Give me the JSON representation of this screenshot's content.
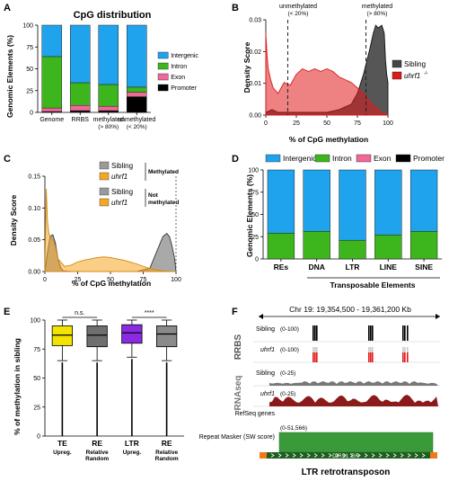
{
  "colors": {
    "intergenic": "#1fa3ec",
    "intron": "#3db51c",
    "exon": "#f0679a",
    "promoter": "#000000",
    "sibling": "#555555",
    "mutant_red": "#e01a1a",
    "mutant_orange": "#f5a623",
    "te_yellow": "#f2e300",
    "ltr_purple": "#8a2be2",
    "rnaseq": "#8b1a1a",
    "repeat_green": "#3a9a3a"
  },
  "panels": {
    "A": "A",
    "B": "B",
    "C": "C",
    "D": "D",
    "E": "E",
    "F": "F"
  },
  "chart_data": [
    {
      "id": "A",
      "type": "bar",
      "stacked": true,
      "title": "CpG distribution",
      "ylabel": "Genomic Elements (%)",
      "ylim": [
        0,
        100
      ],
      "yticks": [
        "0",
        "25",
        "50",
        "75",
        "100"
      ],
      "categories": [
        "Genome",
        "RRBS",
        "methylated",
        "unmethylated"
      ],
      "category_sub": [
        "",
        "",
        "(> 80%)",
        "(< 20%)"
      ],
      "series": [
        {
          "name": "Promoter",
          "values": [
            1,
            2,
            2,
            18
          ]
        },
        {
          "name": "Exon",
          "values": [
            4,
            6,
            5,
            5
          ]
        },
        {
          "name": "Intron",
          "values": [
            59,
            26,
            25,
            6
          ]
        },
        {
          "name": "Intergenic",
          "values": [
            36,
            66,
            68,
            71
          ]
        }
      ],
      "legend": [
        "Intergenic",
        "Intron",
        "Exon",
        "Promoter"
      ]
    },
    {
      "id": "B",
      "type": "area",
      "ylabel": "Density Score",
      "xlabel": "% of CpG methylation",
      "xlim": [
        0,
        100
      ],
      "ylim": [
        0,
        0.035
      ],
      "xticks": [
        "0",
        "25",
        "50",
        "75",
        "100"
      ],
      "yticks": [
        "0.00",
        "0.01",
        "0.02",
        "0.03"
      ],
      "annotations": [
        "unmethylated",
        "(< 20%)",
        "methylated",
        "(> 80%)"
      ],
      "vlines": [
        18,
        82
      ],
      "legend": [
        "Sibling",
        "uhrf1"
      ],
      "mutant_super": "-/-",
      "series": [
        {
          "name": "Sibling",
          "x": [
            0,
            5,
            10,
            20,
            30,
            40,
            50,
            60,
            70,
            75,
            80,
            85,
            88,
            90,
            92,
            95,
            97,
            98,
            99,
            100
          ],
          "y": [
            0.001,
            0.002,
            0.001,
            0.001,
            0.001,
            0.001,
            0.001,
            0.002,
            0.004,
            0.008,
            0.015,
            0.024,
            0.03,
            0.033,
            0.032,
            0.033,
            0.03,
            0.02,
            0.015,
            0.012
          ]
        },
        {
          "name": "uhrf1",
          "x": [
            0,
            1,
            2,
            4,
            6,
            10,
            15,
            20,
            25,
            30,
            35,
            40,
            45,
            50,
            55,
            60,
            65,
            70,
            75,
            80,
            85,
            90,
            95,
            100
          ],
          "y": [
            0.03,
            0.022,
            0.017,
            0.013,
            0.01,
            0.008,
            0.012,
            0.011,
            0.015,
            0.017,
            0.016,
            0.017,
            0.016,
            0.017,
            0.016,
            0.014,
            0.013,
            0.012,
            0.01,
            0.008,
            0.005,
            0.003,
            0.001,
            0.0
          ]
        }
      ]
    },
    {
      "id": "C",
      "type": "area",
      "ylabel": "Density Score",
      "xlabel": "% of CpG methylation",
      "xlim": [
        0,
        100
      ],
      "ylim": [
        0,
        0.15
      ],
      "xticks": [
        "0",
        "25",
        "50",
        "75",
        "100"
      ],
      "yticks": [
        "0.00",
        "0.05",
        "0.10",
        "0.15"
      ],
      "legend": [
        "Sibling",
        "uhrf1",
        "Sibling",
        "uhrf1"
      ],
      "legend_groups": [
        "Methylated",
        "Not",
        "methylated"
      ],
      "mutant_super": "-/-",
      "series": [
        {
          "name": "Sibling",
          "x": [
            0,
            2,
            4,
            6,
            8,
            10,
            12,
            14,
            20,
            40,
            70,
            80,
            85,
            90,
            93,
            95,
            97,
            99,
            100
          ],
          "y": [
            0.0,
            0.03,
            0.055,
            0.058,
            0.045,
            0.02,
            0.006,
            0.001,
            0.0,
            0.0,
            0.0,
            0.005,
            0.03,
            0.055,
            0.06,
            0.055,
            0.04,
            0.02,
            0.0
          ]
        },
        {
          "name": "uhrf1",
          "x": [
            0,
            1,
            2,
            3,
            4,
            6,
            8,
            10,
            15,
            20,
            25,
            30,
            35,
            40,
            45,
            50,
            55,
            60,
            65,
            70,
            75,
            80,
            85,
            90,
            95,
            100
          ],
          "y": [
            0.0,
            0.13,
            0.08,
            0.06,
            0.055,
            0.05,
            0.04,
            0.02,
            0.008,
            0.01,
            0.015,
            0.018,
            0.02,
            0.022,
            0.023,
            0.022,
            0.02,
            0.018,
            0.015,
            0.012,
            0.008,
            0.005,
            0.003,
            0.001,
            0.0,
            0.0
          ]
        }
      ]
    },
    {
      "id": "D",
      "type": "bar",
      "stacked": true,
      "ylabel": "Genomic Elements (%)",
      "ylim": [
        0,
        100
      ],
      "yticks": [
        "0",
        "25",
        "50",
        "75",
        "100"
      ],
      "categories": [
        "REs",
        "DNA",
        "LTR",
        "LINE",
        "SINE"
      ],
      "group_label": "Transposable Elements",
      "legend": [
        "Intergenic",
        "Intron",
        "Exon",
        "Promoter"
      ],
      "series": [
        {
          "name": "Promoter",
          "values": [
            0,
            0,
            0,
            0,
            0
          ]
        },
        {
          "name": "Exon",
          "values": [
            0,
            0,
            0,
            0,
            0
          ]
        },
        {
          "name": "Intron",
          "values": [
            29,
            31,
            21,
            27,
            31
          ]
        },
        {
          "name": "Intergenic",
          "values": [
            71,
            69,
            79,
            73,
            69
          ]
        }
      ]
    },
    {
      "id": "E",
      "type": "box",
      "ylabel": "% of methylation in sibling",
      "ylim": [
        0,
        100
      ],
      "yticks": [
        "0",
        "25",
        "50",
        "75",
        "100"
      ],
      "categories": [
        "TE",
        "RE",
        "LTR",
        "RE"
      ],
      "category_sub": [
        "Upreg.",
        "Relative Random",
        "Upreg.",
        "Relative Random"
      ],
      "significance": [
        "n.s.",
        "****"
      ],
      "boxes": [
        {
          "min": 65,
          "q1": 78,
          "median": 87,
          "q3": 95,
          "max": 100,
          "outlier_low": 0
        },
        {
          "min": 65,
          "q1": 77,
          "median": 87,
          "q3": 95,
          "max": 100,
          "outlier_low": 0
        },
        {
          "min": 68,
          "q1": 80,
          "median": 89,
          "q3": 96,
          "max": 100,
          "outlier_low": 0
        },
        {
          "min": 65,
          "q1": 77,
          "median": 88,
          "q3": 95,
          "max": 100,
          "outlier_low": 0
        }
      ]
    }
  ],
  "browser": {
    "locus": "Chr 19: 19,354,500 - 19,361,200 Kb",
    "rrbs_label": "RRBS",
    "rnaseq_label": "RNAseq",
    "tracks": [
      {
        "name": "Sibling",
        "range": "(0-100)"
      },
      {
        "name": "uhrf1",
        "range": "(0-100)"
      },
      {
        "name": "Sibling",
        "range": "(0-25)"
      },
      {
        "name": "uhrf1",
        "range": "(0-25)"
      }
    ],
    "refseq": "RefSeq genes",
    "repeat_masker": "Repeat Masker (SW score)",
    "repeat_range": "(0-51,566)",
    "feature_label": "DIRS1_DR",
    "caption": "LTR retrotransposon"
  }
}
